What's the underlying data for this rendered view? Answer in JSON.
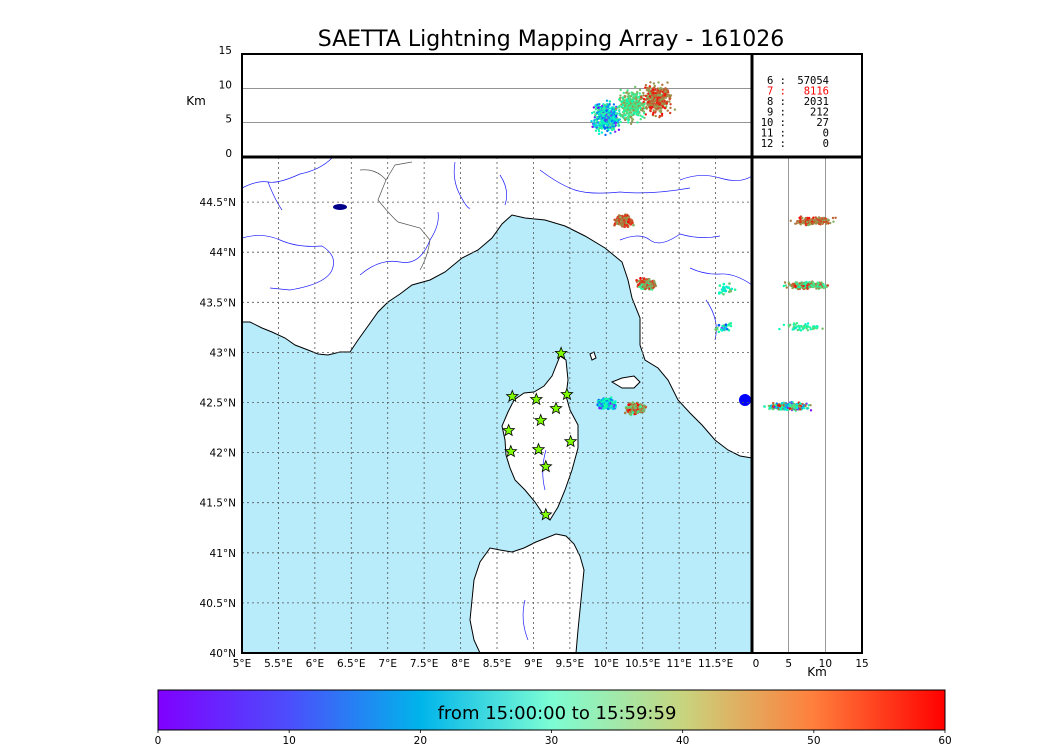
{
  "title": "SAETTA Lightning Mapping Array - 161026",
  "colors": {
    "sea": "#b8ecfa",
    "land": "#ffffff",
    "coast": "#000000",
    "river": "#2020ff",
    "border": "#555555",
    "station_fill": "#7fff00",
    "highlight_stat": "#ff0000"
  },
  "station_marker": "star-icon",
  "chart_data": [
    {
      "type": "scatter",
      "name": "plan-view",
      "xlim": [
        5.0,
        12.0
      ],
      "ylim": [
        40.0,
        44.95
      ],
      "x_ticks": [
        {
          "value": 5.0,
          "label": "5°E"
        },
        {
          "value": 5.5,
          "label": "5.5°E"
        },
        {
          "value": 6.0,
          "label": "6°E"
        },
        {
          "value": 6.5,
          "label": "6.5°E"
        },
        {
          "value": 7.0,
          "label": "7°E"
        },
        {
          "value": 7.5,
          "label": "7.5°E"
        },
        {
          "value": 8.0,
          "label": "8°E"
        },
        {
          "value": 8.5,
          "label": "8.5°E"
        },
        {
          "value": 9.0,
          "label": "9°E"
        },
        {
          "value": 9.5,
          "label": "9.5°E"
        },
        {
          "value": 10.0,
          "label": "10°E"
        },
        {
          "value": 10.5,
          "label": "10.5°E"
        },
        {
          "value": 11.0,
          "label": "11°E"
        },
        {
          "value": 11.5,
          "label": "11.5°E"
        }
      ],
      "y_ticks": [
        {
          "value": 40.0,
          "label": "40°N"
        },
        {
          "value": 40.5,
          "label": "40.5°N"
        },
        {
          "value": 41.0,
          "label": "41°N"
        },
        {
          "value": 41.5,
          "label": "41.5°N"
        },
        {
          "value": 42.0,
          "label": "42°N"
        },
        {
          "value": 42.5,
          "label": "42.5°N"
        },
        {
          "value": 43.0,
          "label": "43°N"
        },
        {
          "value": 43.5,
          "label": "43.5°N"
        },
        {
          "value": 44.0,
          "label": "44°N"
        },
        {
          "value": 44.5,
          "label": "44.5°N"
        }
      ],
      "grid": true,
      "stations": [
        {
          "lon": 9.38,
          "lat": 42.99
        },
        {
          "lon": 8.71,
          "lat": 42.56
        },
        {
          "lon": 9.04,
          "lat": 42.53
        },
        {
          "lon": 9.46,
          "lat": 42.58
        },
        {
          "lon": 9.31,
          "lat": 42.44
        },
        {
          "lon": 9.1,
          "lat": 42.32
        },
        {
          "lon": 8.66,
          "lat": 42.22
        },
        {
          "lon": 9.51,
          "lat": 42.11
        },
        {
          "lon": 8.69,
          "lat": 42.01
        },
        {
          "lon": 9.07,
          "lat": 42.03
        },
        {
          "lon": 9.17,
          "lat": 41.86
        },
        {
          "lon": 9.17,
          "lat": 41.38
        }
      ],
      "clusters": [
        {
          "lon": 10.25,
          "lat": 44.31,
          "t_min": 45,
          "t_max": 60,
          "count": 220
        },
        {
          "lon": 10.55,
          "lat": 43.68,
          "t_min": 30,
          "t_max": 60,
          "count": 320
        },
        {
          "lon": 11.65,
          "lat": 43.63,
          "t_min": 20,
          "t_max": 45,
          "count": 25
        },
        {
          "lon": 11.62,
          "lat": 43.25,
          "t_min": 5,
          "t_max": 45,
          "count": 25
        },
        {
          "lon": 10.0,
          "lat": 42.49,
          "t_min": 0,
          "t_max": 35,
          "count": 320
        },
        {
          "lon": 10.4,
          "lat": 42.44,
          "t_min": 35,
          "t_max": 60,
          "count": 320
        }
      ]
    },
    {
      "type": "scatter",
      "name": "lon-altitude",
      "xlim": [
        5.0,
        12.0
      ],
      "ylim": [
        0,
        15
      ],
      "ylabel": "Km",
      "y_ticks": [
        0,
        5,
        10,
        15
      ],
      "reference_lines": [
        5,
        10
      ],
      "clusters": [
        {
          "lon": 10.0,
          "alt": 5.8,
          "t_min": 0,
          "t_max": 40,
          "count": 500
        },
        {
          "lon": 10.35,
          "alt": 7.5,
          "t_min": 30,
          "t_max": 50,
          "count": 300
        },
        {
          "lon": 10.7,
          "alt": 8.5,
          "t_min": 45,
          "t_max": 60,
          "count": 400
        }
      ],
      "stats": [
        {
          "label": "6 :",
          "value": "57054",
          "highlight": false
        },
        {
          "label": "7 :",
          "value": "8116",
          "highlight": true
        },
        {
          "label": "8 :",
          "value": "2031",
          "highlight": false
        },
        {
          "label": "9 :",
          "value": "212",
          "highlight": false
        },
        {
          "label": "10 :",
          "value": "27",
          "highlight": false
        },
        {
          "label": "11 :",
          "value": "0",
          "highlight": false
        },
        {
          "label": "12 :",
          "value": "0",
          "highlight": false
        }
      ]
    },
    {
      "type": "scatter",
      "name": "altitude-lat",
      "xlim": [
        0,
        15
      ],
      "ylim": [
        40.0,
        44.95
      ],
      "xlabel": "Km",
      "x_ticks": [
        0,
        5,
        10,
        15
      ],
      "reference_lines": [
        5,
        10
      ],
      "clusters": [
        {
          "alt": 8.5,
          "lat": 44.31,
          "t_min": 45,
          "t_max": 60,
          "count": 200
        },
        {
          "alt": 7.5,
          "lat": 43.67,
          "t_min": 30,
          "t_max": 60,
          "count": 320
        },
        {
          "alt": 7.0,
          "lat": 43.25,
          "t_min": 20,
          "t_max": 45,
          "count": 60
        },
        {
          "alt": 5.0,
          "lat": 42.46,
          "t_min": 0,
          "t_max": 60,
          "count": 350
        }
      ]
    },
    {
      "type": "heatmap",
      "name": "time-colorbar",
      "colormap": "rainbow",
      "range": [
        0,
        60
      ],
      "ticks": [
        0,
        10,
        20,
        30,
        40,
        50,
        60
      ],
      "label": "from 15:00:00 to 15:59:59"
    }
  ]
}
